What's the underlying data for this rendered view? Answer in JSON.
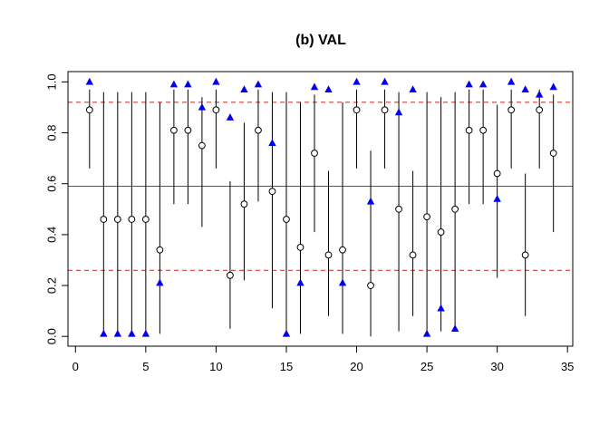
{
  "chart_data": {
    "type": "scatter",
    "title": "(b) VAL",
    "xlabel": "",
    "ylabel": "",
    "xlim": [
      0,
      35
    ],
    "ylim": [
      0,
      1
    ],
    "x_ticks": [
      0,
      5,
      10,
      15,
      20,
      25,
      30,
      35
    ],
    "y_ticks": [
      "0.0",
      "0.2",
      "0.4",
      "0.6",
      "0.8",
      "1.0"
    ],
    "grid": false,
    "reference_lines": [
      {
        "y": 0.92,
        "style": "dashed",
        "color": "#cc2222"
      },
      {
        "y": 0.59,
        "style": "solid",
        "color": "#cc2222"
      },
      {
        "y": 0.26,
        "style": "dashed",
        "color": "#cc2222"
      }
    ],
    "point_color": "#000000",
    "triangle_color": "#0000ee",
    "series": [
      {
        "marker": "circle",
        "x": [
          1,
          2,
          3,
          4,
          5,
          6,
          7,
          8,
          9,
          10,
          11,
          12,
          13,
          14,
          15,
          16,
          17,
          18,
          19,
          20,
          21,
          22,
          23,
          24,
          25,
          26,
          27,
          28,
          29,
          30,
          31,
          32,
          33,
          34
        ],
        "y": [
          0.89,
          0.46,
          0.46,
          0.46,
          0.46,
          0.34,
          0.81,
          0.81,
          0.75,
          0.89,
          0.24,
          0.52,
          0.81,
          0.57,
          0.46,
          0.35,
          0.72,
          0.32,
          0.34,
          0.89,
          0.2,
          0.89,
          0.5,
          0.32,
          0.47,
          0.41,
          0.5,
          0.81,
          0.81,
          0.64,
          0.89,
          0.32,
          0.89,
          0.72
        ]
      },
      {
        "marker": "triangle",
        "x": [
          1,
          2,
          3,
          4,
          5,
          6,
          7,
          8,
          9,
          10,
          11,
          12,
          13,
          14,
          15,
          16,
          17,
          18,
          19,
          20,
          21,
          22,
          23,
          24,
          25,
          26,
          27,
          28,
          29,
          30,
          31,
          32,
          33,
          34
        ],
        "y": [
          1.0,
          0.01,
          0.01,
          0.01,
          0.01,
          0.21,
          0.99,
          0.99,
          0.9,
          1.0,
          0.86,
          0.97,
          0.99,
          0.76,
          0.01,
          0.21,
          0.98,
          0.97,
          0.21,
          1.0,
          0.53,
          1.0,
          0.88,
          0.97,
          0.01,
          0.11,
          0.03,
          0.99,
          0.99,
          0.54,
          1.0,
          0.97,
          0.95,
          0.98
        ]
      }
    ],
    "intervals": {
      "x": [
        1,
        2,
        3,
        4,
        5,
        6,
        7,
        8,
        9,
        10,
        11,
        12,
        13,
        14,
        15,
        16,
        17,
        18,
        19,
        20,
        21,
        22,
        23,
        24,
        25,
        26,
        27,
        28,
        29,
        30,
        31,
        32,
        33,
        34
      ],
      "low": [
        0.66,
        0.01,
        0.01,
        0.01,
        0.01,
        0.01,
        0.52,
        0.52,
        0.43,
        0.66,
        0.03,
        0.22,
        0.53,
        0.11,
        0.01,
        0.01,
        0.41,
        0.08,
        0.01,
        0.66,
        0.0,
        0.66,
        0.02,
        0.08,
        0.02,
        0.02,
        0.03,
        0.52,
        0.52,
        0.23,
        0.66,
        0.08,
        0.66,
        0.41
      ],
      "high": [
        0.97,
        0.96,
        0.96,
        0.96,
        0.96,
        0.92,
        0.97,
        0.97,
        0.94,
        0.97,
        0.61,
        0.84,
        0.97,
        0.96,
        0.96,
        0.92,
        0.95,
        0.65,
        0.92,
        0.97,
        0.73,
        0.97,
        0.96,
        0.65,
        0.96,
        0.94,
        0.96,
        0.97,
        0.97,
        0.91,
        0.97,
        0.64,
        0.97,
        0.95
      ]
    }
  }
}
